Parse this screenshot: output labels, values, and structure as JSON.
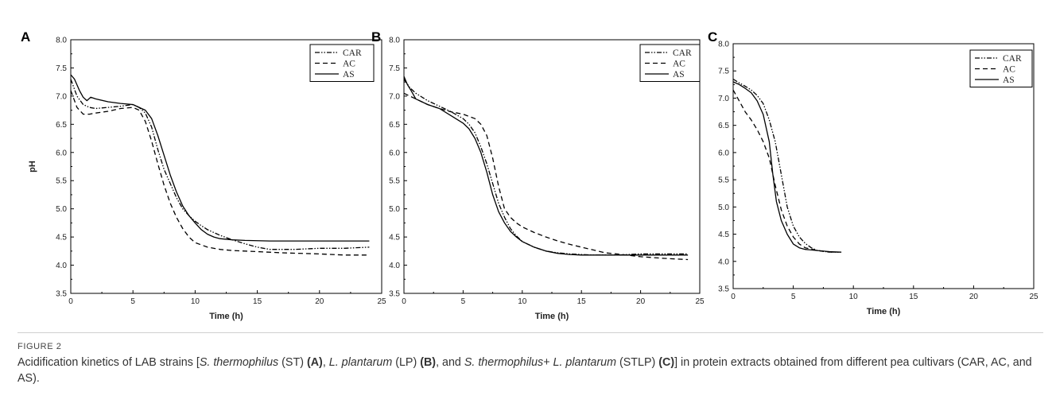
{
  "figure": {
    "label": "FIGURE 2",
    "caption": "Acidification kinetics of LAB strains [S. thermophilus (ST) (A), L. plantarum (LP) (B), and S. thermophilus+ L. plantarum (STLP) (C)] in protein extracts obtained from different pea cultivars (CAR, AC, and AS)."
  },
  "style": {
    "line_color": "#000000",
    "caption_italic_terms": [
      "S. thermophilus",
      "L. plantarum"
    ],
    "caption_bold_terms": [
      "(A)",
      "(B)",
      "(C)"
    ]
  },
  "chart_data": [
    {
      "panel": "A",
      "type": "line",
      "xlabel": "Time (h)",
      "ylabel": "pH",
      "xlim": [
        0,
        25
      ],
      "ylim": [
        3.5,
        8.0
      ],
      "xticks": [
        0,
        5,
        10,
        15,
        20,
        25
      ],
      "yticks": [
        3.5,
        4.0,
        4.5,
        5.0,
        5.5,
        6.0,
        6.5,
        7.0,
        7.5,
        8.0
      ],
      "legend_position": "top-right",
      "series": [
        {
          "name": "CAR",
          "dash": "dashdotdot",
          "x": [
            0,
            0.5,
            1,
            1.5,
            2,
            3,
            4,
            5,
            5.5,
            6,
            6.5,
            7,
            7.5,
            8,
            8.5,
            9,
            9.5,
            10,
            10.5,
            11,
            12,
            13,
            14,
            15,
            16,
            18,
            20,
            22,
            24
          ],
          "y": [
            7.3,
            7.0,
            6.85,
            6.8,
            6.78,
            6.8,
            6.82,
            6.85,
            6.8,
            6.7,
            6.45,
            6.05,
            5.7,
            5.45,
            5.2,
            5.0,
            4.88,
            4.78,
            4.7,
            4.63,
            4.53,
            4.45,
            4.38,
            4.32,
            4.28,
            4.28,
            4.3,
            4.3,
            4.32
          ]
        },
        {
          "name": "AC",
          "dash": "dashed",
          "x": [
            0,
            0.5,
            1,
            1.5,
            2,
            3,
            4,
            5,
            5.5,
            6,
            6.5,
            7,
            7.5,
            8,
            8.5,
            9,
            9.5,
            10,
            11,
            12,
            13,
            14,
            15,
            17,
            20,
            22,
            24
          ],
          "y": [
            7.1,
            6.8,
            6.68,
            6.68,
            6.7,
            6.73,
            6.78,
            6.8,
            6.75,
            6.55,
            6.2,
            5.8,
            5.42,
            5.1,
            4.85,
            4.65,
            4.5,
            4.4,
            4.32,
            4.28,
            4.26,
            4.25,
            4.24,
            4.22,
            4.2,
            4.18,
            4.18
          ]
        },
        {
          "name": "AS",
          "dash": "solid",
          "x": [
            0,
            0.3,
            0.7,
            1,
            1.3,
            1.6,
            2,
            3,
            4,
            5,
            5.5,
            6,
            6.5,
            7,
            7.5,
            8,
            8.5,
            9,
            9.5,
            10,
            10.5,
            11,
            11.5,
            12,
            13,
            14,
            16,
            18,
            20,
            22,
            24
          ],
          "y": [
            7.38,
            7.3,
            7.1,
            6.98,
            6.92,
            6.98,
            6.95,
            6.9,
            6.87,
            6.85,
            6.8,
            6.75,
            6.6,
            6.3,
            5.95,
            5.6,
            5.3,
            5.05,
            4.88,
            4.75,
            4.63,
            4.55,
            4.5,
            4.47,
            4.45,
            4.44,
            4.43,
            4.43,
            4.43,
            4.43,
            4.43
          ]
        }
      ]
    },
    {
      "panel": "B",
      "type": "line",
      "xlabel": "Time (h)",
      "ylabel": "",
      "xlim": [
        0,
        25
      ],
      "ylim": [
        3.5,
        8.0
      ],
      "xticks": [
        0,
        5,
        10,
        15,
        20,
        25
      ],
      "yticks": [
        3.5,
        4.0,
        4.5,
        5.0,
        5.5,
        6.0,
        6.5,
        7.0,
        7.5,
        8.0
      ],
      "legend_position": "top-right",
      "series": [
        {
          "name": "CAR",
          "dash": "dashdotdot",
          "x": [
            0,
            0.5,
            1,
            2,
            3,
            4,
            5,
            5.5,
            6,
            6.5,
            7,
            7.5,
            8,
            8.5,
            9,
            9.5,
            10,
            11,
            12,
            13,
            14,
            15,
            16,
            18,
            20,
            22,
            24
          ],
          "y": [
            7.3,
            7.15,
            7.05,
            6.92,
            6.82,
            6.72,
            6.6,
            6.5,
            6.35,
            6.1,
            5.8,
            5.45,
            5.1,
            4.85,
            4.65,
            4.52,
            4.42,
            4.32,
            4.25,
            4.22,
            4.2,
            4.19,
            4.18,
            4.18,
            4.2,
            4.2,
            4.2
          ]
        },
        {
          "name": "AC",
          "dash": "dashed",
          "x": [
            0,
            0.5,
            1,
            2,
            3,
            4,
            5,
            6,
            6.5,
            7,
            7.5,
            8,
            8.5,
            9,
            9.5,
            10,
            11,
            12,
            13,
            14,
            15,
            16,
            17,
            18,
            20,
            22,
            24
          ],
          "y": [
            7.05,
            7.0,
            6.95,
            6.85,
            6.78,
            6.72,
            6.68,
            6.6,
            6.5,
            6.3,
            5.9,
            5.4,
            5.0,
            4.85,
            4.75,
            4.68,
            4.58,
            4.5,
            4.43,
            4.37,
            4.32,
            4.27,
            4.22,
            4.2,
            4.15,
            4.12,
            4.1
          ]
        },
        {
          "name": "AS",
          "dash": "solid",
          "x": [
            0,
            0.3,
            0.6,
            1,
            2,
            3,
            4,
            5,
            5.5,
            6,
            6.5,
            7,
            7.5,
            8,
            8.5,
            9,
            9.5,
            10,
            11,
            12,
            13,
            14,
            15,
            16,
            18,
            20,
            22,
            24
          ],
          "y": [
            7.35,
            7.2,
            7.1,
            6.95,
            6.85,
            6.78,
            6.65,
            6.52,
            6.42,
            6.25,
            6.0,
            5.65,
            5.25,
            4.95,
            4.75,
            4.6,
            4.5,
            4.42,
            4.32,
            4.25,
            4.21,
            4.19,
            4.18,
            4.18,
            4.18,
            4.18,
            4.18,
            4.18
          ]
        }
      ]
    },
    {
      "panel": "C",
      "type": "line",
      "xlabel": "Time (h)",
      "ylabel": "",
      "xlim": [
        0,
        25
      ],
      "ylim": [
        3.5,
        8.0
      ],
      "xticks": [
        0,
        5,
        10,
        15,
        20,
        25
      ],
      "yticks": [
        3.5,
        4.0,
        4.5,
        5.0,
        5.5,
        6.0,
        6.5,
        7.0,
        7.5,
        8.0
      ],
      "legend_position": "top-right",
      "series": [
        {
          "name": "CAR",
          "dash": "dashdotdot",
          "x": [
            0,
            0.5,
            1,
            1.5,
            2,
            2.5,
            3,
            3.5,
            4,
            4.5,
            5,
            5.5,
            6,
            6.5,
            7,
            8,
            9
          ],
          "y": [
            7.35,
            7.28,
            7.22,
            7.15,
            7.05,
            6.9,
            6.6,
            6.2,
            5.6,
            5.0,
            4.65,
            4.45,
            4.33,
            4.25,
            4.2,
            4.17,
            4.17
          ]
        },
        {
          "name": "AC",
          "dash": "dashed",
          "x": [
            0,
            0.5,
            1,
            1.5,
            2,
            2.5,
            3,
            3.5,
            4,
            4.5,
            5,
            5.5,
            6,
            7,
            8,
            9
          ],
          "y": [
            7.15,
            6.95,
            6.75,
            6.6,
            6.42,
            6.2,
            5.9,
            5.4,
            4.95,
            4.65,
            4.45,
            4.32,
            4.25,
            4.2,
            4.17,
            4.17
          ]
        },
        {
          "name": "AS",
          "dash": "solid",
          "x": [
            0,
            0.5,
            1,
            1.5,
            2,
            2.5,
            3,
            3.3,
            3.6,
            4,
            4.5,
            5,
            5.5,
            6,
            7,
            8,
            9
          ],
          "y": [
            7.3,
            7.25,
            7.18,
            7.1,
            6.95,
            6.7,
            6.2,
            5.6,
            5.1,
            4.75,
            4.5,
            4.32,
            4.25,
            4.22,
            4.2,
            4.18,
            4.17
          ]
        }
      ]
    }
  ]
}
